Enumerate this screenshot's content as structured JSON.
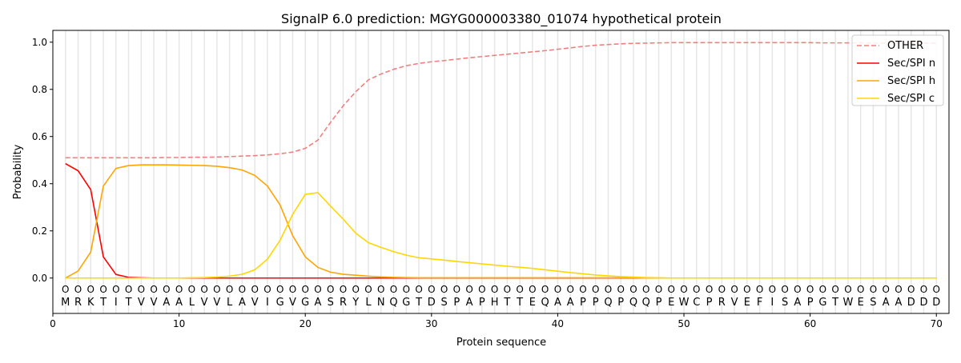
{
  "chart_data": {
    "type": "line",
    "title": "SignalP 6.0 prediction: MGYG000003380_01074 hypothetical protein",
    "xlabel": "Protein sequence",
    "ylabel": "Probability",
    "xlim": [
      0,
      71
    ],
    "ylim": [
      -0.15,
      1.05
    ],
    "xticks": [
      "0",
      "10",
      "20",
      "30",
      "40",
      "50",
      "60",
      "70"
    ],
    "yticks": [
      "0.0",
      "0.2",
      "0.4",
      "0.6",
      "0.8",
      "1.0"
    ],
    "legend_position": "top-right",
    "sequence": [
      "M",
      "R",
      "K",
      "T",
      "I",
      "T",
      "V",
      "V",
      "A",
      "A",
      "L",
      "V",
      "V",
      "L",
      "A",
      "V",
      "I",
      "G",
      "V",
      "G",
      "A",
      "S",
      "R",
      "Y",
      "L",
      "N",
      "Q",
      "G",
      "T",
      "D",
      "S",
      "P",
      "A",
      "P",
      "H",
      "T",
      "T",
      "E",
      "Q",
      "A",
      "A",
      "P",
      "P",
      "Q",
      "P",
      "Q",
      "Q",
      "P",
      "E",
      "W",
      "C",
      "P",
      "R",
      "V",
      "E",
      "F",
      "I",
      "S",
      "A",
      "P",
      "G",
      "T",
      "W",
      "E",
      "S",
      "A",
      "A",
      "D",
      "D",
      "D"
    ],
    "labels_marker": "O",
    "series": [
      {
        "name": "OTHER",
        "color": "#f08080",
        "dash": true,
        "values": [
          0.51,
          0.51,
          0.51,
          0.51,
          0.51,
          0.51,
          0.51,
          0.51,
          0.511,
          0.511,
          0.512,
          0.512,
          0.513,
          0.515,
          0.517,
          0.519,
          0.522,
          0.527,
          0.534,
          0.55,
          0.585,
          0.66,
          0.73,
          0.79,
          0.84,
          0.865,
          0.885,
          0.9,
          0.91,
          0.917,
          0.922,
          0.928,
          0.934,
          0.939,
          0.944,
          0.949,
          0.954,
          0.959,
          0.964,
          0.97,
          0.976,
          0.982,
          0.987,
          0.99,
          0.993,
          0.995,
          0.996,
          0.997,
          0.998,
          0.998,
          0.998,
          0.998,
          0.998,
          0.998,
          0.998,
          0.998,
          0.998,
          0.998,
          0.998,
          0.998,
          0.997,
          0.997,
          0.997,
          0.997,
          0.996,
          0.996,
          0.996,
          0.996,
          0.996,
          0.996
        ]
      },
      {
        "name": "Sec/SPI n",
        "color": "#ff0000",
        "dash": false,
        "values": [
          0.485,
          0.455,
          0.375,
          0.09,
          0.015,
          0.003,
          0.001,
          0,
          0,
          0,
          0,
          0,
          0,
          0,
          0,
          0,
          0,
          0,
          0,
          0,
          0,
          0,
          0,
          0,
          0,
          0,
          0,
          0,
          0,
          0,
          0,
          0,
          0,
          0,
          0,
          0,
          0,
          0,
          0,
          0,
          0,
          0,
          0,
          0,
          0,
          0,
          0,
          0,
          0,
          0,
          0,
          0,
          0,
          0,
          0,
          0,
          0,
          0,
          0,
          0,
          0,
          0,
          0,
          0,
          0,
          0,
          0,
          0,
          0,
          0
        ]
      },
      {
        "name": "Sec/SPI h",
        "color": "#ffa500",
        "dash": false,
        "values": [
          0,
          0.03,
          0.11,
          0.39,
          0.465,
          0.477,
          0.48,
          0.48,
          0.48,
          0.479,
          0.478,
          0.477,
          0.474,
          0.468,
          0.458,
          0.435,
          0.39,
          0.31,
          0.18,
          0.09,
          0.045,
          0.025,
          0.016,
          0.012,
          0.008,
          0.005,
          0.003,
          0.002,
          0.001,
          0.001,
          0.001,
          0.001,
          0.001,
          0.001,
          0.001,
          0.001,
          0.001,
          0.001,
          0.001,
          0.001,
          0.001,
          0.001,
          0.001,
          0.001,
          0.001,
          0.001,
          0,
          0,
          0,
          0,
          0,
          0,
          0,
          0,
          0,
          0,
          0,
          0,
          0,
          0,
          0,
          0,
          0,
          0,
          0,
          0,
          0,
          0,
          0,
          0
        ]
      },
      {
        "name": "Sec/SPI c",
        "color": "#ffd700",
        "dash": false,
        "values": [
          0,
          0,
          0,
          0,
          0,
          0,
          0,
          0,
          0,
          0,
          0.001,
          0.002,
          0.004,
          0.008,
          0.016,
          0.035,
          0.08,
          0.16,
          0.27,
          0.355,
          0.362,
          0.305,
          0.25,
          0.19,
          0.15,
          0.13,
          0.112,
          0.097,
          0.086,
          0.081,
          0.076,
          0.07,
          0.065,
          0.06,
          0.055,
          0.05,
          0.046,
          0.041,
          0.035,
          0.029,
          0.023,
          0.018,
          0.013,
          0.009,
          0.006,
          0.004,
          0.002,
          0.001,
          0,
          0,
          0,
          0,
          0,
          0,
          0,
          0,
          0,
          0,
          0,
          0,
          0,
          0,
          0,
          0,
          0,
          0,
          0,
          0,
          0,
          0
        ]
      }
    ]
  }
}
